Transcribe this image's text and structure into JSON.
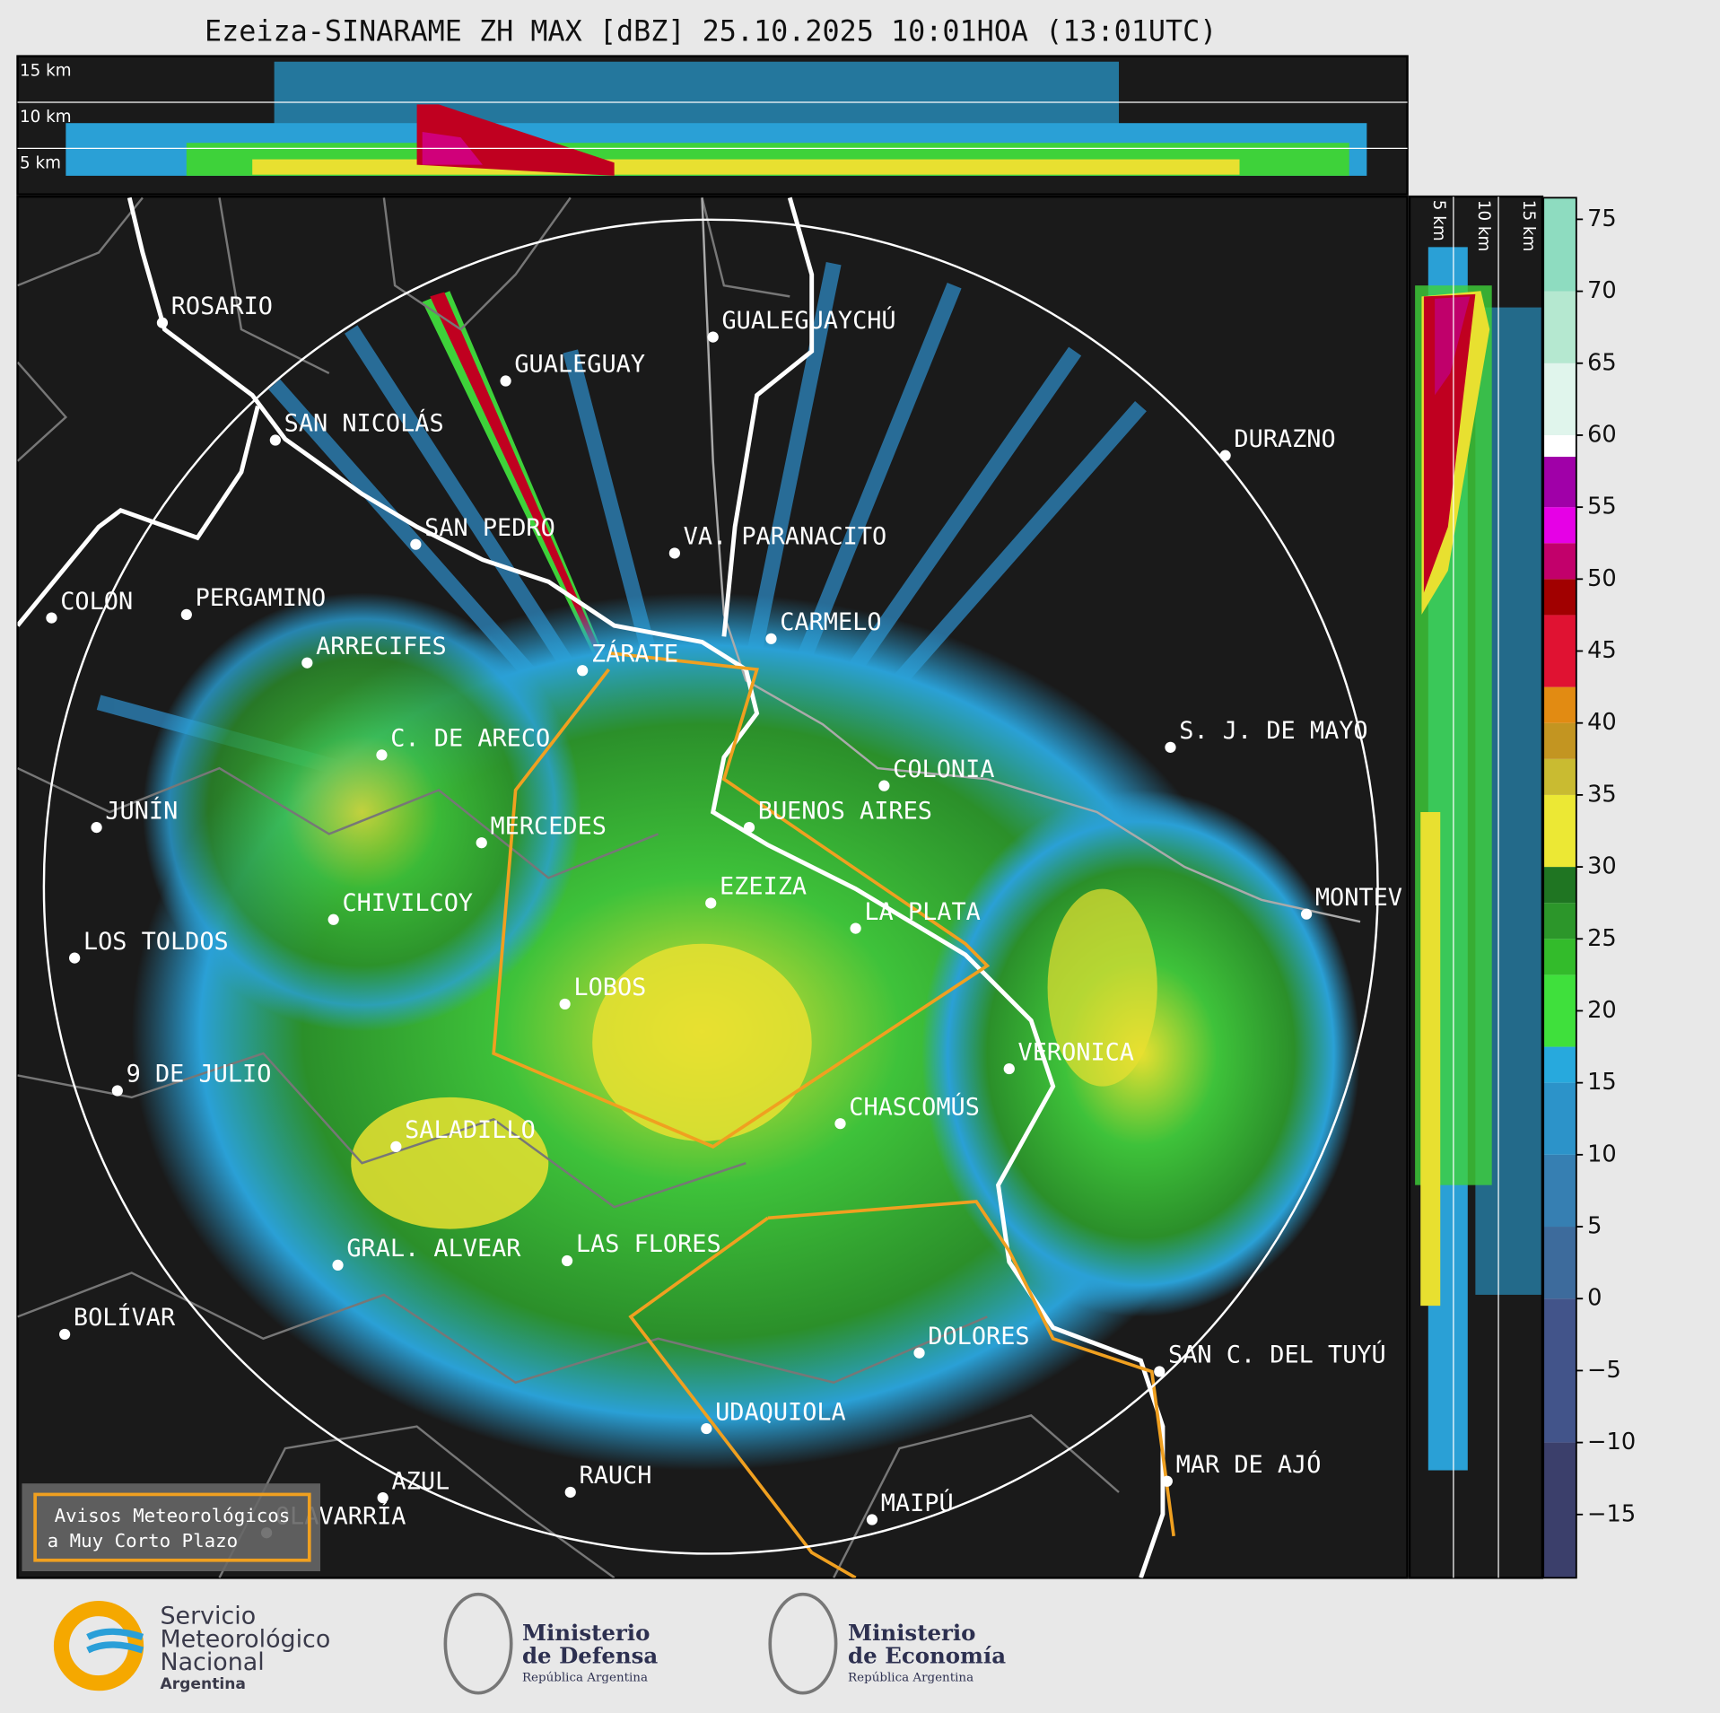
{
  "header": {
    "title": "Ezeiza-SINARAME ZH MAX [dBZ] 25.10.2025 10:01HOA (13:01UTC)"
  },
  "top_panel": {
    "labels": [
      "15 km",
      "10 km",
      "5 km"
    ]
  },
  "side_panel": {
    "labels": [
      "5 km",
      "10 km",
      "15 km"
    ]
  },
  "cities": [
    "ROSARIO",
    "GUALEGUAYCHÚ",
    "GUALEGUAY",
    "SAN NICOLÁS",
    "DURAZNO",
    "SAN PEDRO",
    "VA. PARANACITO",
    "COLON",
    "PERGAMINO",
    "CARMELO",
    "ARRECIFES",
    "ZÁRATE",
    "S. J. DE MAYO",
    "C. DE ARECO",
    "COLONIA",
    "JUNÍN",
    "BUENOS AIRES",
    "MERCEDES",
    "EZEIZA",
    "MONTEV",
    "CHIVILCOY",
    "LA PLATA",
    "LOS TOLDOS",
    "LOBOS",
    "VERONICA",
    "9 DE JULIO",
    "CHASCOMÚS",
    "SALADILLO",
    "GRAL. ALVEAR",
    "LAS FLORES",
    "BOLÍVAR",
    "DOLORES",
    "SAN C. DEL TUYÚ",
    "UDAQUIOLA",
    "MAR DE AJÓ",
    "AZUL",
    "RAUCH",
    "MAIPÚ",
    "OLAVARRÍA"
  ],
  "warning_box": [
    "Avisos Meteorológicos",
    "a Muy Corto Plazo"
  ],
  "colorbar": {
    "lim": [
      -19.4,
      76.5
    ],
    "ticks": [
      75,
      70,
      65,
      60,
      55,
      50,
      45,
      40,
      35,
      30,
      25,
      20,
      15,
      10,
      5,
      0,
      {
        "value": -5,
        "label": "−5"
      },
      {
        "value": -10,
        "label": "−10"
      },
      {
        "value": -15,
        "label": "−15"
      }
    ],
    "stops": [
      {
        "value": -19.4,
        "color": "#3b3f6b"
      },
      {
        "value": -10,
        "color": "#42548a"
      },
      {
        "value": 0,
        "color": "#3d6b9c"
      },
      {
        "value": 5,
        "color": "#367fb2"
      },
      {
        "value": 10,
        "color": "#2c93c9"
      },
      {
        "value": 15,
        "color": "#27a9dd"
      },
      {
        "value": 17.5,
        "color": "#3fe03c"
      },
      {
        "value": 22.5,
        "color": "#33bb2b"
      },
      {
        "value": 25,
        "color": "#2c962a"
      },
      {
        "value": 27.5,
        "color": "#1f7522"
      },
      {
        "value": 30,
        "color": "#ece834"
      },
      {
        "value": 35,
        "color": "#c9bb31"
      },
      {
        "value": 37.5,
        "color": "#c39521"
      },
      {
        "value": 40,
        "color": "#e28b12"
      },
      {
        "value": 42.5,
        "color": "#e01232"
      },
      {
        "value": 47.5,
        "color": "#a10000"
      },
      {
        "value": 50,
        "color": "#c2006b"
      },
      {
        "value": 52.5,
        "color": "#e600e6"
      },
      {
        "value": 55,
        "color": "#a000a8"
      },
      {
        "value": 58.5,
        "color": "#ffffff"
      },
      {
        "value": 60,
        "color": "#e0f5ec"
      },
      {
        "value": 65,
        "color": "#b5e8d0"
      },
      {
        "value": 70,
        "color": "#8edcc0"
      }
    ]
  },
  "logos": {
    "smn": [
      "Servicio",
      "Meteorológico",
      "Nacional",
      "Argentina"
    ],
    "defensa": [
      "Ministerio",
      "de Defensa",
      "República Argentina"
    ],
    "economia": [
      "Ministerio",
      "de Economía",
      "República Argentina"
    ]
  }
}
